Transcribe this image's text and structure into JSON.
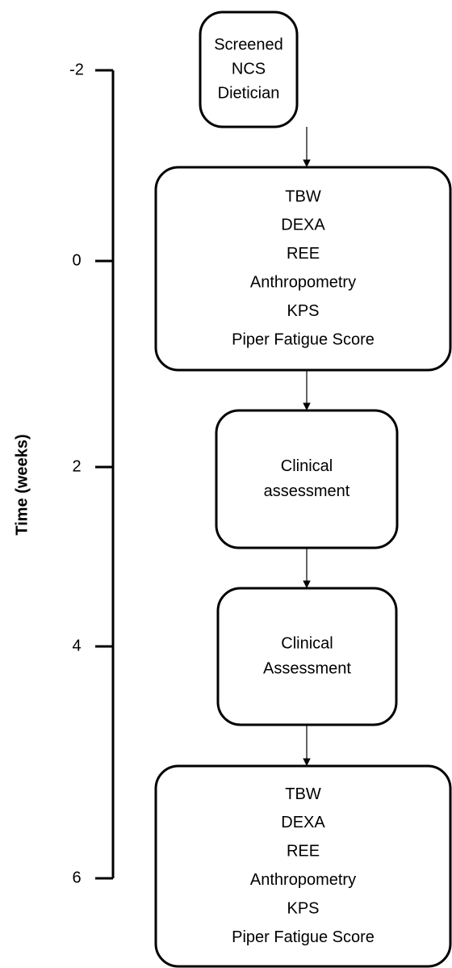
{
  "axis": {
    "label": "Time (weeks)",
    "ticks": [
      -2,
      0,
      2,
      4,
      6
    ]
  },
  "nodes": [
    {
      "lines": [
        "Screened",
        "NCS",
        "Dietician"
      ]
    },
    {
      "lines": [
        "TBW",
        "DEXA",
        "REE",
        "Anthropometry",
        "KPS",
        "Piper Fatigue Score"
      ]
    },
    {
      "lines": [
        "Clinical",
        "assessment"
      ]
    },
    {
      "lines": [
        "Clinical",
        "Assessment"
      ]
    },
    {
      "lines": [
        "TBW",
        "DEXA",
        "REE",
        "Anthropometry",
        "KPS",
        "Piper Fatigue Score"
      ]
    }
  ]
}
